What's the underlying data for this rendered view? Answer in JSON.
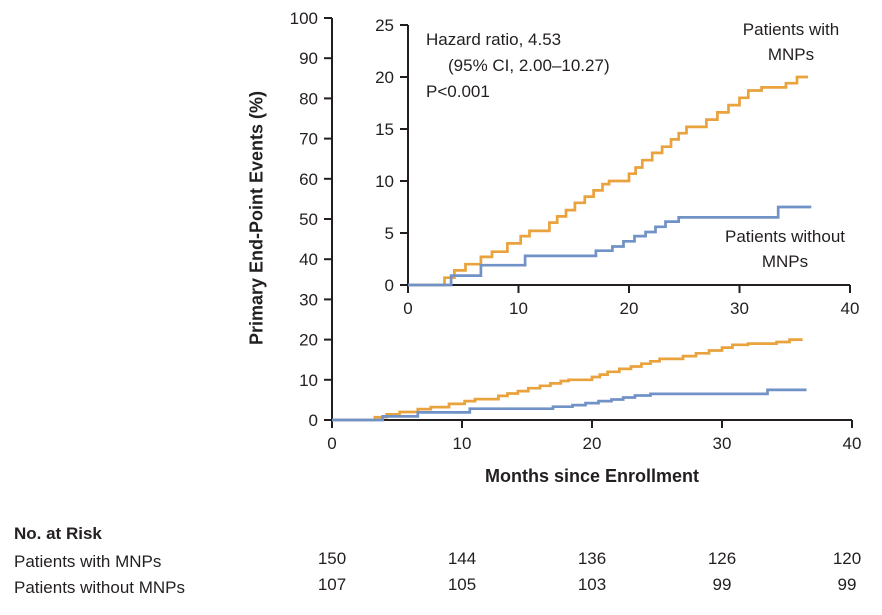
{
  "chart_data": {
    "type": "line",
    "style": "step",
    "title": "",
    "xlabel": "Months since Enrollment",
    "ylabel": "Primary End-Point Events (%)",
    "xlim": [
      0,
      40
    ],
    "x_ticks": [
      0,
      10,
      20,
      30,
      40
    ],
    "main_axis": {
      "ylim": [
        0,
        100
      ],
      "y_ticks": [
        0,
        10,
        20,
        30,
        40,
        50,
        60,
        70,
        80,
        90,
        100
      ]
    },
    "inset_axis": {
      "ylim": [
        0,
        25
      ],
      "y_ticks": [
        0,
        5,
        10,
        15,
        20,
        25
      ]
    },
    "grid": false,
    "annotation": {
      "hazard_ratio": "Hazard ratio, 4.53",
      "ci": "(95% CI, 2.00–10.27)",
      "p_value": "P<0.001"
    },
    "labels": {
      "with_line1": "Patients with",
      "with_line2": "MNPs",
      "without_line1": "Patients without",
      "without_line2": "MNPs"
    },
    "series": [
      {
        "name": "Patients with MNPs",
        "color": "#E9A23C",
        "points": [
          [
            0,
            0
          ],
          [
            3.3,
            0
          ],
          [
            3.3,
            0.7
          ],
          [
            4.2,
            0.7
          ],
          [
            4.2,
            1.4
          ],
          [
            5.2,
            1.4
          ],
          [
            5.2,
            2.0
          ],
          [
            6.6,
            2.0
          ],
          [
            6.6,
            2.7
          ],
          [
            7.6,
            2.7
          ],
          [
            7.6,
            3.2
          ],
          [
            9.0,
            3.2
          ],
          [
            9.0,
            4.0
          ],
          [
            10.2,
            4.0
          ],
          [
            10.2,
            4.7
          ],
          [
            11.0,
            4.7
          ],
          [
            11.0,
            5.2
          ],
          [
            12.8,
            5.2
          ],
          [
            12.8,
            6.0
          ],
          [
            13.5,
            6.0
          ],
          [
            13.5,
            6.6
          ],
          [
            14.3,
            6.6
          ],
          [
            14.3,
            7.2
          ],
          [
            15.1,
            7.2
          ],
          [
            15.1,
            7.9
          ],
          [
            16.0,
            7.9
          ],
          [
            16.0,
            8.5
          ],
          [
            16.8,
            8.5
          ],
          [
            16.8,
            9.1
          ],
          [
            17.6,
            9.1
          ],
          [
            17.6,
            9.7
          ],
          [
            18.2,
            9.7
          ],
          [
            18.2,
            10.0
          ],
          [
            20.0,
            10.0
          ],
          [
            20.0,
            10.7
          ],
          [
            20.6,
            10.7
          ],
          [
            20.6,
            11.3
          ],
          [
            21.2,
            11.3
          ],
          [
            21.2,
            12.0
          ],
          [
            22.1,
            12.0
          ],
          [
            22.1,
            12.7
          ],
          [
            23.0,
            12.7
          ],
          [
            23.0,
            13.3
          ],
          [
            23.8,
            13.3
          ],
          [
            23.8,
            14.0
          ],
          [
            24.5,
            14.0
          ],
          [
            24.5,
            14.6
          ],
          [
            25.2,
            14.6
          ],
          [
            25.2,
            15.2
          ],
          [
            27.0,
            15.2
          ],
          [
            27.0,
            15.9
          ],
          [
            28.0,
            15.9
          ],
          [
            28.0,
            16.6
          ],
          [
            29.0,
            16.6
          ],
          [
            29.0,
            17.3
          ],
          [
            30.0,
            17.3
          ],
          [
            30.0,
            18.0
          ],
          [
            30.8,
            18.0
          ],
          [
            30.8,
            18.7
          ],
          [
            32.0,
            18.7
          ],
          [
            32.0,
            19.0
          ],
          [
            34.2,
            19.0
          ],
          [
            34.2,
            19.4
          ],
          [
            35.2,
            19.4
          ],
          [
            35.2,
            20.0
          ],
          [
            36.2,
            20.0
          ]
        ]
      },
      {
        "name": "Patients without MNPs",
        "color": "#7092C6",
        "points": [
          [
            0,
            0
          ],
          [
            3.9,
            0
          ],
          [
            3.9,
            0.9
          ],
          [
            6.6,
            0.9
          ],
          [
            6.6,
            1.9
          ],
          [
            10.6,
            1.9
          ],
          [
            10.6,
            2.8
          ],
          [
            17.0,
            2.8
          ],
          [
            17.0,
            3.3
          ],
          [
            18.5,
            3.3
          ],
          [
            18.5,
            3.7
          ],
          [
            19.5,
            3.7
          ],
          [
            19.5,
            4.2
          ],
          [
            20.5,
            4.2
          ],
          [
            20.5,
            4.7
          ],
          [
            21.5,
            4.7
          ],
          [
            21.5,
            5.1
          ],
          [
            22.4,
            5.1
          ],
          [
            22.4,
            5.6
          ],
          [
            23.3,
            5.6
          ],
          [
            23.3,
            6.1
          ],
          [
            24.5,
            6.1
          ],
          [
            24.5,
            6.5
          ],
          [
            33.5,
            6.5
          ],
          [
            33.5,
            7.5
          ],
          [
            36.5,
            7.5
          ]
        ]
      }
    ]
  },
  "risk_table": {
    "title": "No. at Risk",
    "rows": [
      {
        "label": "Patients with MNPs",
        "values": [
          "150",
          "144",
          "136",
          "126",
          "120"
        ]
      },
      {
        "label": "Patients without MNPs",
        "values": [
          "107",
          "105",
          "103",
          "99",
          "99"
        ]
      }
    ]
  }
}
